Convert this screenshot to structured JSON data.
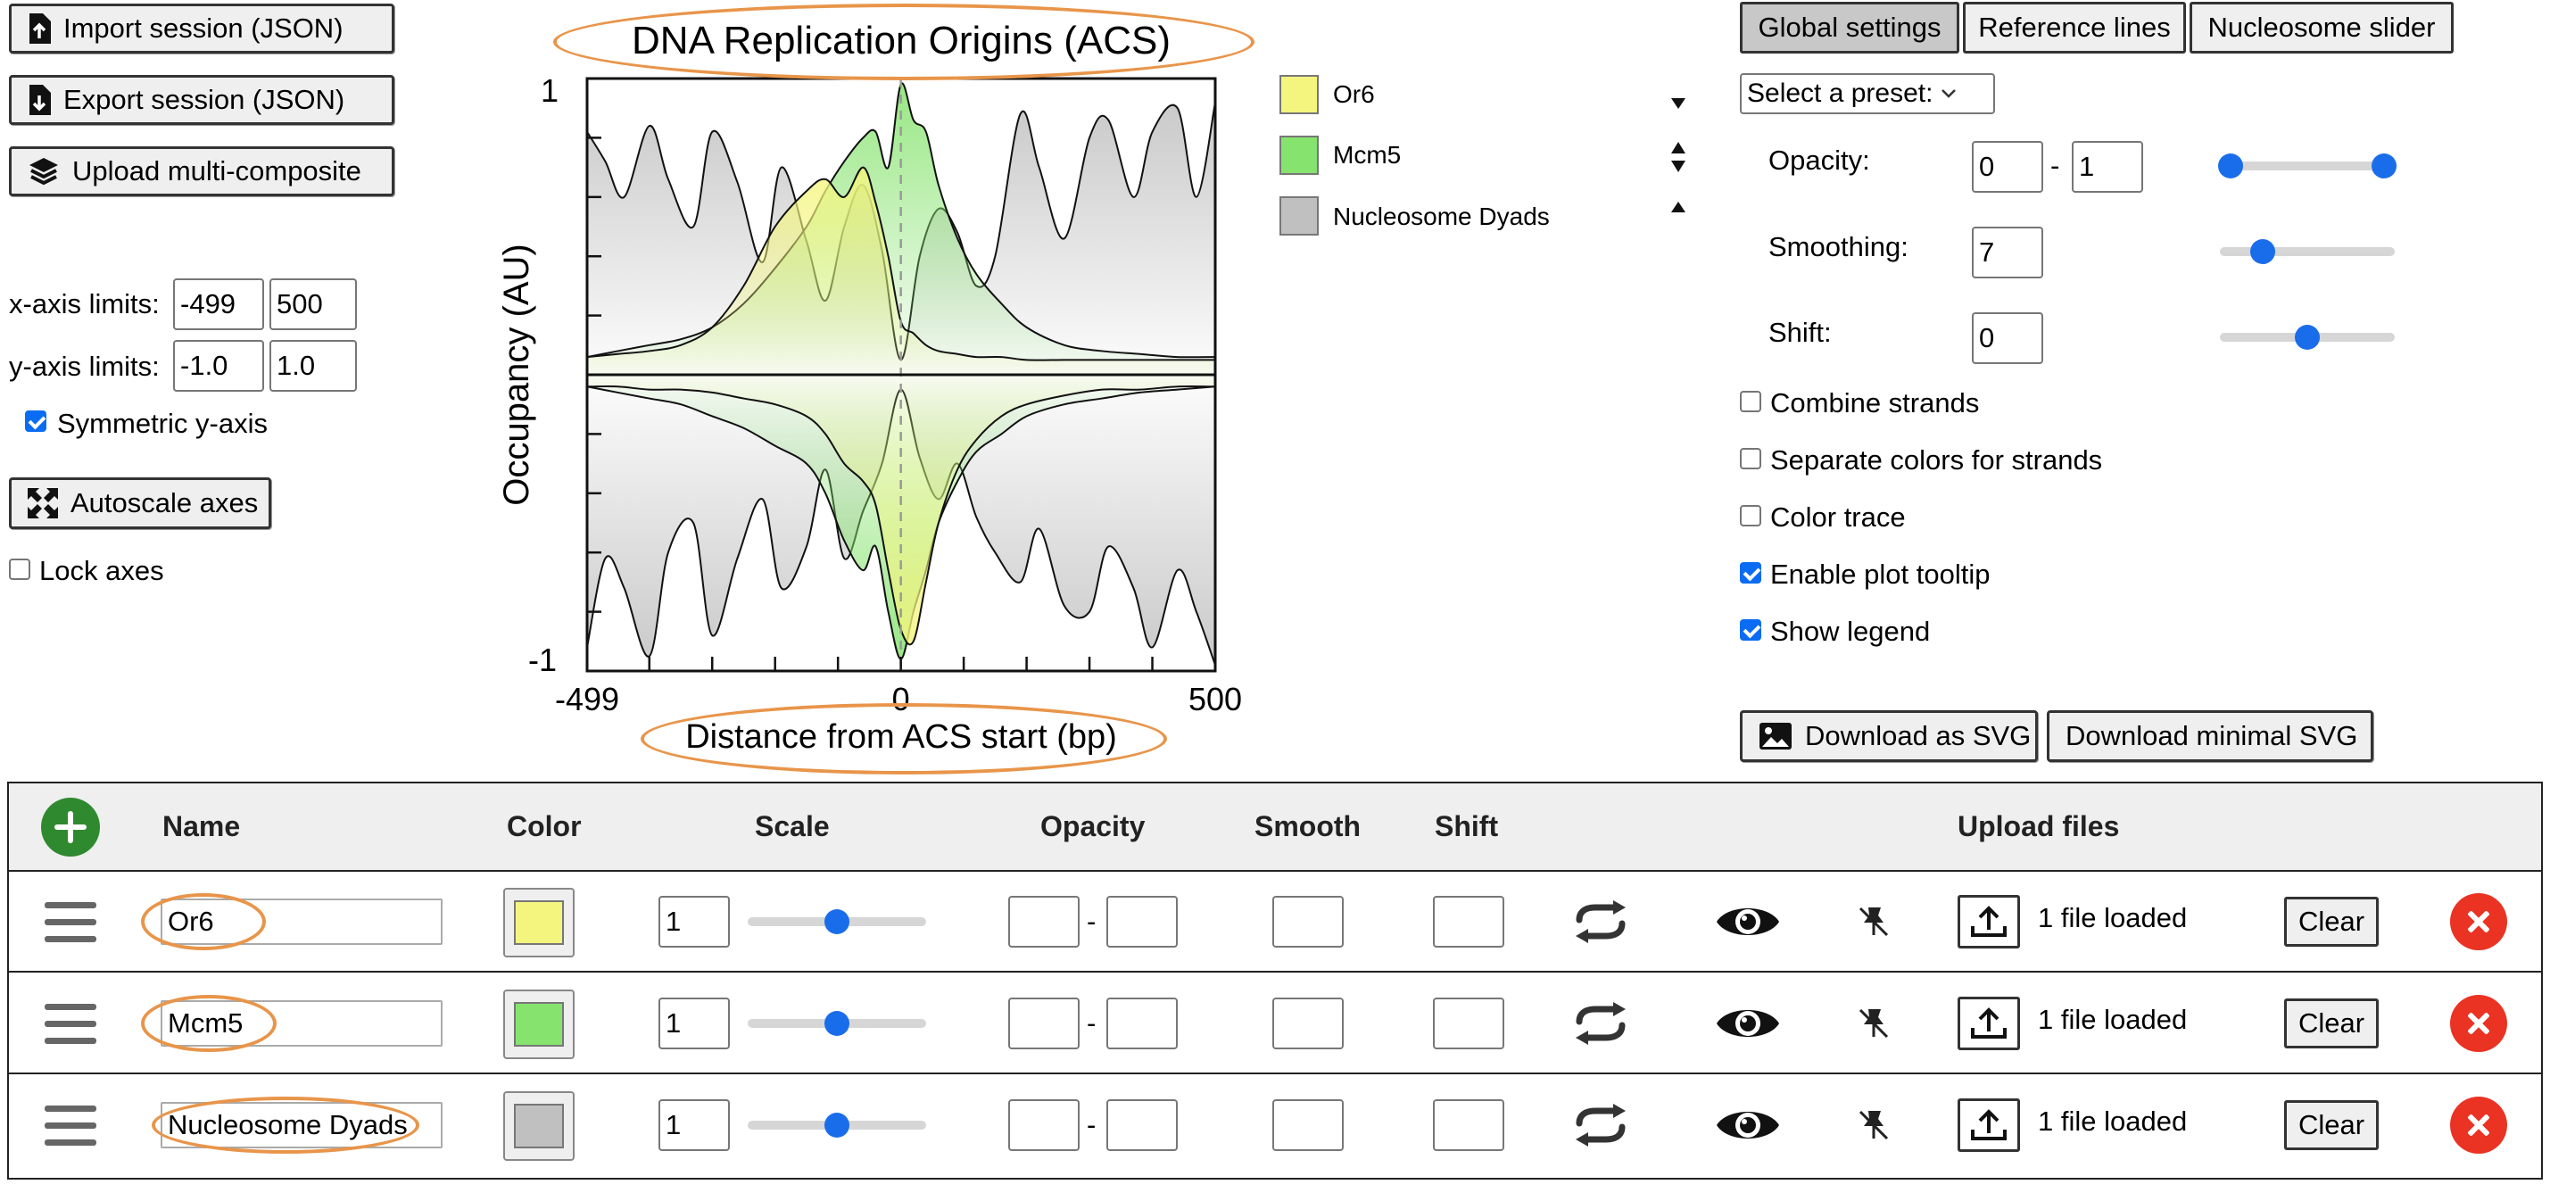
{
  "left_panel": {
    "import_label": "Import session (JSON)",
    "export_label": "Export session (JSON)",
    "upload_label": "Upload multi-composite",
    "xaxis_label": "x-axis limits:",
    "xaxis_min": "-499",
    "xaxis_max": "500",
    "yaxis_label": "y-axis limits:",
    "yaxis_min": "-1.0",
    "yaxis_max": "1.0",
    "symmetric_label": "Symmetric y-axis",
    "symmetric_checked": true,
    "autoscale_label": "Autoscale axes",
    "lock_label": "Lock axes",
    "lock_checked": false
  },
  "chart_data": {
    "type": "area",
    "title": "DNA Replication Origins (ACS)",
    "xlabel": "Distance from ACS start (bp)",
    "ylabel": "Occupancy (AU)",
    "xlim": [
      -499,
      500
    ],
    "ylim": [
      -1,
      1
    ],
    "xticks": [
      "-499",
      "0",
      "500"
    ],
    "yticks": [
      "1",
      "-1"
    ],
    "series": [
      {
        "name": "Nucleosome Dyads",
        "color": "#c0c0c0",
        "x": [
          -499,
          -470,
          -440,
          -400,
          -370,
          -330,
          -300,
          -260,
          -220,
          -190,
          -150,
          -120,
          -90,
          -60,
          -30,
          0,
          30,
          60,
          90,
          120,
          150,
          190,
          220,
          260,
          300,
          330,
          370,
          400,
          440,
          470,
          500
        ],
        "forward": [
          0.82,
          0.72,
          0.6,
          0.84,
          0.66,
          0.5,
          0.82,
          0.65,
          0.38,
          0.7,
          0.45,
          0.25,
          0.5,
          0.64,
          0.42,
          0.05,
          0.4,
          0.56,
          0.48,
          0.3,
          0.4,
          0.88,
          0.7,
          0.46,
          0.8,
          0.86,
          0.6,
          0.82,
          0.9,
          0.6,
          0.92
        ],
        "reverse": [
          -0.92,
          -0.62,
          -0.72,
          -0.95,
          -0.6,
          -0.5,
          -0.88,
          -0.62,
          -0.42,
          -0.72,
          -0.58,
          -0.32,
          -0.62,
          -0.46,
          -0.3,
          -0.05,
          -0.28,
          -0.42,
          -0.3,
          -0.48,
          -0.6,
          -0.7,
          -0.52,
          -0.78,
          -0.8,
          -0.58,
          -0.72,
          -0.92,
          -0.66,
          -0.8,
          -0.98
        ]
      },
      {
        "name": "Mcm5",
        "color": "#86e36e",
        "x": [
          -499,
          -450,
          -400,
          -350,
          -300,
          -250,
          -200,
          -150,
          -120,
          -90,
          -60,
          -40,
          -20,
          0,
          20,
          40,
          60,
          90,
          120,
          160,
          200,
          260,
          320,
          380,
          440,
          500
        ],
        "forward": [
          0.06,
          0.08,
          0.1,
          0.12,
          0.16,
          0.24,
          0.36,
          0.5,
          0.62,
          0.72,
          0.8,
          0.82,
          0.7,
          0.98,
          0.86,
          0.82,
          0.64,
          0.46,
          0.34,
          0.24,
          0.16,
          0.1,
          0.08,
          0.07,
          0.06,
          0.06
        ],
        "reverse": [
          -0.04,
          -0.06,
          -0.08,
          -0.1,
          -0.14,
          -0.18,
          -0.24,
          -0.3,
          -0.4,
          -0.56,
          -0.66,
          -0.58,
          -0.8,
          -0.96,
          -0.8,
          -0.66,
          -0.5,
          -0.36,
          -0.26,
          -0.2,
          -0.14,
          -0.1,
          -0.08,
          -0.06,
          -0.05,
          -0.04
        ]
      },
      {
        "name": "Or6",
        "color": "#f4f57e",
        "x": [
          -499,
          -450,
          -400,
          -350,
          -300,
          -250,
          -200,
          -150,
          -120,
          -90,
          -60,
          -40,
          -20,
          0,
          20,
          40,
          60,
          90,
          120,
          160,
          200,
          260,
          320,
          380,
          440,
          500
        ],
        "forward": [
          0.06,
          0.07,
          0.08,
          0.1,
          0.16,
          0.3,
          0.5,
          0.62,
          0.66,
          0.6,
          0.7,
          0.58,
          0.4,
          0.18,
          0.14,
          0.1,
          0.08,
          0.07,
          0.06,
          0.06,
          0.05,
          0.05,
          0.05,
          0.05,
          0.05,
          0.05
        ],
        "reverse": [
          -0.04,
          -0.04,
          -0.05,
          -0.05,
          -0.06,
          -0.08,
          -0.1,
          -0.14,
          -0.2,
          -0.3,
          -0.36,
          -0.44,
          -0.66,
          -0.86,
          -0.9,
          -0.7,
          -0.5,
          -0.32,
          -0.22,
          -0.14,
          -0.1,
          -0.07,
          -0.05,
          -0.05,
          -0.04,
          -0.04
        ]
      }
    ]
  },
  "legend": {
    "items": [
      {
        "name": "Or6",
        "color": "#f4f57e"
      },
      {
        "name": "Mcm5",
        "color": "#86e36e"
      },
      {
        "name": "Nucleosome Dyads",
        "color": "#c0c0c0"
      }
    ]
  },
  "settings": {
    "tabs": [
      {
        "label": "Global settings",
        "active": true
      },
      {
        "label": "Reference lines",
        "active": false
      },
      {
        "label": "Nucleosome slider",
        "active": false
      }
    ],
    "preset_label": "Select a preset:",
    "opacity_label": "Opacity:",
    "opacity_min": "0",
    "opacity_max": "1",
    "smoothing_label": "Smoothing:",
    "smoothing_value": "7",
    "shift_label": "Shift:",
    "shift_value": "0",
    "combine_label": "Combine strands",
    "combine_checked": false,
    "separate_label": "Separate colors for strands",
    "separate_checked": false,
    "colortrace_label": "Color trace",
    "colortrace_checked": false,
    "tooltip_label": "Enable plot tooltip",
    "tooltip_checked": true,
    "showlegend_label": "Show legend",
    "showlegend_checked": true,
    "download_svg_label": "Download as SVG",
    "download_minimal_label": "Download minimal SVG"
  },
  "table": {
    "headers": {
      "name": "Name",
      "color": "Color",
      "scale": "Scale",
      "opacity": "Opacity",
      "smooth": "Smooth",
      "shift": "Shift",
      "upload": "Upload files"
    },
    "rows": [
      {
        "name": "Or6",
        "color": "#f4f57e",
        "scale": "1",
        "status": "1 file loaded",
        "clear": "Clear"
      },
      {
        "name": "Mcm5",
        "color": "#86e36e",
        "scale": "1",
        "status": "1 file loaded",
        "clear": "Clear"
      },
      {
        "name": "Nucleosome Dyads",
        "color": "#c0c0c0",
        "scale": "1",
        "status": "1 file loaded",
        "clear": "Clear"
      }
    ]
  }
}
